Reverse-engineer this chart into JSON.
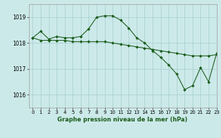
{
  "title": "Graphe pression niveau de la mer (hPa)",
  "background_color": "#cce9e9",
  "grid_color": "#aad0d0",
  "line_color": "#1a5c1a",
  "xlim": [
    -0.5,
    23
  ],
  "ylim": [
    1015.5,
    1019.5
  ],
  "yticks": [
    1016,
    1017,
    1018,
    1019
  ],
  "xticks": [
    0,
    1,
    2,
    3,
    4,
    5,
    6,
    7,
    8,
    9,
    10,
    11,
    12,
    13,
    14,
    15,
    16,
    17,
    18,
    19,
    20,
    21,
    22,
    23
  ],
  "series": [
    {
      "x": [
        0,
        1,
        2,
        3,
        4,
        5,
        6,
        7,
        8,
        9,
        10,
        11,
        12,
        13,
        14,
        15,
        16,
        17,
        18,
        19,
        20,
        21,
        22,
        23
      ],
      "y": [
        1018.2,
        1018.45,
        1018.15,
        1018.25,
        1018.2,
        1018.2,
        1018.25,
        1018.55,
        1019.0,
        1019.05,
        1019.05,
        1018.88,
        1018.58,
        1018.2,
        1018.0,
        1017.7,
        1017.45,
        1017.15,
        1016.8,
        1016.2,
        1016.35,
        1017.05,
        1016.5,
        1017.6
      ]
    },
    {
      "x": [
        0,
        1,
        2,
        3,
        4,
        5,
        6,
        7,
        8,
        9,
        10,
        11,
        12,
        13,
        14,
        15,
        16,
        17,
        18,
        19,
        20,
        21,
        22,
        23
      ],
      "y": [
        1018.2,
        1018.1,
        1018.1,
        1018.1,
        1018.1,
        1018.05,
        1018.05,
        1018.05,
        1018.05,
        1018.05,
        1018.0,
        1017.95,
        1017.9,
        1017.85,
        1017.8,
        1017.75,
        1017.7,
        1017.65,
        1017.6,
        1017.55,
        1017.5,
        1017.5,
        1017.5,
        1017.55
      ]
    }
  ]
}
